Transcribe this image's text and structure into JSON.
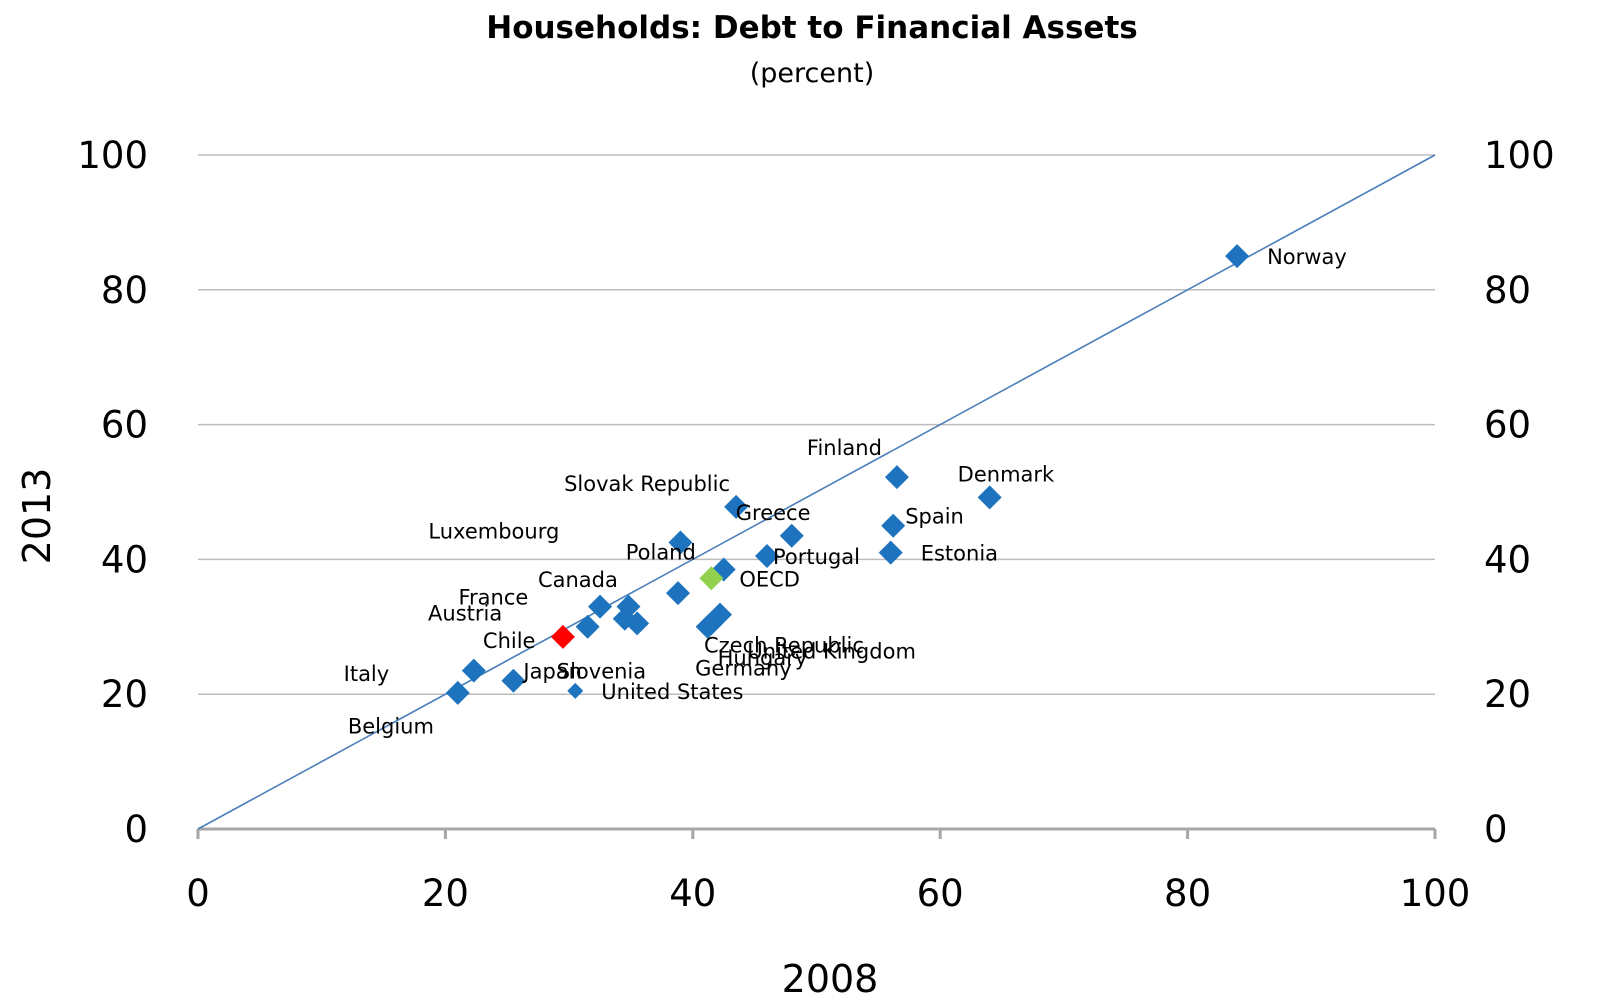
{
  "chart_data": {
    "type": "scatter",
    "title": "Households: Debt to Financial Assets",
    "subtitle": "(percent)",
    "xlabel": "2008",
    "ylabel": "2013",
    "xlim": [
      0,
      100
    ],
    "ylim": [
      0,
      100
    ],
    "x_ticks": [
      "0",
      "20",
      "40",
      "60",
      "80",
      "100"
    ],
    "y_ticks": [
      "0",
      "20",
      "40",
      "60",
      "80",
      "100"
    ],
    "y_ticks_right": [
      "0",
      "20",
      "40",
      "60",
      "80",
      "100"
    ],
    "grid": "horizontal",
    "reference_line": {
      "type": "45-degree",
      "from": [
        0,
        0
      ],
      "to": [
        100,
        100
      ]
    },
    "colors": {
      "default": "#1e73be",
      "Chile": "#ff0000",
      "OECD": "#92d050",
      "reference_line": "#4a7ebb"
    },
    "points": [
      {
        "label": "Norway",
        "x": 84,
        "y": 85
      },
      {
        "label": "Denmark",
        "x": 64,
        "y": 49.2
      },
      {
        "label": "Finland",
        "x": 56.5,
        "y": 52.2
      },
      {
        "label": "Spain",
        "x": 56.2,
        "y": 45
      },
      {
        "label": "Estonia",
        "x": 56,
        "y": 41
      },
      {
        "label": "Slovak Republic",
        "x": 43.5,
        "y": 47.8
      },
      {
        "label": "Greece",
        "x": 48,
        "y": 43.5
      },
      {
        "label": "Portugal",
        "x": 46,
        "y": 40.5
      },
      {
        "label": "Luxembourg",
        "x": 39,
        "y": 42.5
      },
      {
        "label": "Poland",
        "x": 42.5,
        "y": 38.5
      },
      {
        "label": "OECD",
        "x": 41.5,
        "y": 37.2
      },
      {
        "label": "Canada",
        "x": 38.8,
        "y": 35
      },
      {
        "label": "Czech Republic",
        "x": 42.2,
        "y": 31.8
      },
      {
        "label": "United Kingdom",
        "x": 41.5,
        "y": 30.5
      },
      {
        "label": "Hungary",
        "x": 41.2,
        "y": 30
      },
      {
        "label": "France",
        "x": 34.8,
        "y": 33
      },
      {
        "label": "Austria",
        "x": 32.5,
        "y": 33
      },
      {
        "label": "Germany",
        "x": 35.5,
        "y": 30.5
      },
      {
        "label": "Slovenia",
        "x": 34.5,
        "y": 31.2
      },
      {
        "label": "Chile",
        "x": 29.5,
        "y": 28.5
      },
      {
        "label": "Italy",
        "x": 31.5,
        "y": 30
      },
      {
        "label": "Japan",
        "x": 25.5,
        "y": 22
      },
      {
        "label": "United States",
        "x": 30.5,
        "y": 20.5
      },
      {
        "label": "Belgium",
        "x": 22.3,
        "y": 23.5
      },
      {
        "label": "Belgium-2",
        "x": 21,
        "y": 20.2
      }
    ]
  }
}
